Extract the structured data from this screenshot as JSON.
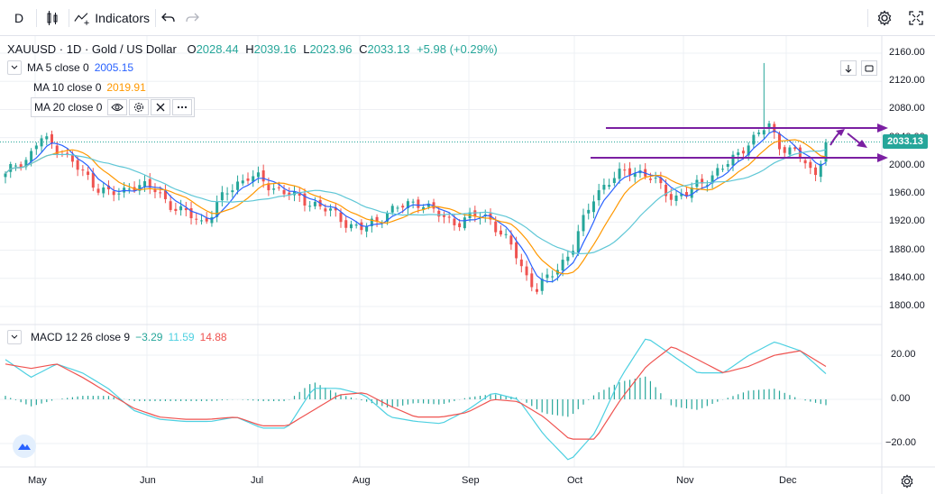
{
  "toolbar": {
    "interval": "D",
    "indicators_label": "Indicators"
  },
  "legend": {
    "symbol": "XAUUSD · 1D · Gold / US Dollar",
    "o_label": "O",
    "o_value": "2028.44",
    "h_label": "H",
    "h_value": "2039.16",
    "l_label": "L",
    "l_value": "2023.96",
    "c_label": "C",
    "c_value": "2033.13",
    "change": "+5.98 (+0.29%)",
    "ma5_label": "MA 5 close 0",
    "ma5_value": "2005.15",
    "ma10_label": "MA 10 close 0",
    "ma10_value": "2019.91",
    "ma20_label": "MA 20 close 0"
  },
  "macd": {
    "label": "MACD 12 26 close 9",
    "histogram_value": "−3.29",
    "macd_value": "11.59",
    "signal_value": "14.88"
  },
  "price_axis": {
    "ticks": [
      "2160.00",
      "2120.00",
      "2080.00",
      "2040.00",
      "2000.00",
      "1960.00",
      "1920.00",
      "1880.00",
      "1840.00",
      "1800.00"
    ],
    "current_price": "2033.13"
  },
  "macd_axis": {
    "ticks": [
      "20.00",
      "0.00",
      "−20.00"
    ]
  },
  "time_axis": {
    "labels": [
      "May",
      "Jun",
      "Jul",
      "Aug",
      "Sep",
      "Oct",
      "Nov",
      "Dec"
    ]
  },
  "colors": {
    "up": "#26a69a",
    "down": "#ef5350",
    "ma5": "#2962ff",
    "ma10": "#ff9800",
    "ma20": "#5fc7d6",
    "macd_line": "#4dd0e1",
    "signal_line": "#ef5350",
    "annotation": "#7b1fa2"
  },
  "chart_data": [
    {
      "type": "candlestick",
      "title": "XAUUSD · 1D · Gold / US Dollar",
      "x_labels": [
        "May",
        "Jun",
        "Jul",
        "Aug",
        "Sep",
        "Oct",
        "Nov",
        "Dec"
      ],
      "ylim": [
        1790,
        2180
      ],
      "approx_close_path": [
        1985,
        2005,
        2010,
        2040,
        2030,
        2020,
        2000,
        1985,
        1970,
        1960,
        1960,
        1975,
        1970,
        1965,
        1950,
        1935,
        1930,
        1920,
        1935,
        1960,
        1975,
        1985,
        1980,
        1970,
        1965,
        1955,
        1950,
        1945,
        1935,
        1925,
        1915,
        1910,
        1920,
        1935,
        1940,
        1945,
        1950,
        1935,
        1925,
        1920,
        1925,
        1930,
        1925,
        1900,
        1880,
        1845,
        1825,
        1840,
        1860,
        1880,
        1920,
        1960,
        1975,
        1985,
        1995,
        1990,
        1980,
        1965,
        1955,
        1960,
        1975,
        1985,
        1995,
        2010,
        2030,
        2040,
        2060,
        2030,
        2020,
        2010,
        1985,
        2033
      ]
    },
    {
      "type": "line",
      "title": "MACD 12 26 close 9",
      "ylim": [
        -30,
        30
      ],
      "series": [
        {
          "name": "MACD",
          "values": [
            18,
            10,
            16,
            12,
            5,
            -5,
            -9,
            -10,
            -10,
            -8,
            -13,
            -13,
            5,
            5,
            2,
            -8,
            -10,
            -11,
            -5,
            3,
            0,
            -16,
            -28,
            -15,
            10,
            28,
            20,
            12,
            12,
            20,
            26,
            22,
            11.59
          ]
        },
        {
          "name": "Signal",
          "values": [
            16,
            14,
            16,
            10,
            3,
            -4,
            -8,
            -9,
            -9,
            -8,
            -12,
            -12,
            -5,
            2,
            3,
            -3,
            -8,
            -8,
            -6,
            0,
            -1,
            -8,
            -18,
            -18,
            0,
            15,
            24,
            18,
            12,
            15,
            20,
            22,
            14.88
          ]
        }
      ]
    }
  ]
}
